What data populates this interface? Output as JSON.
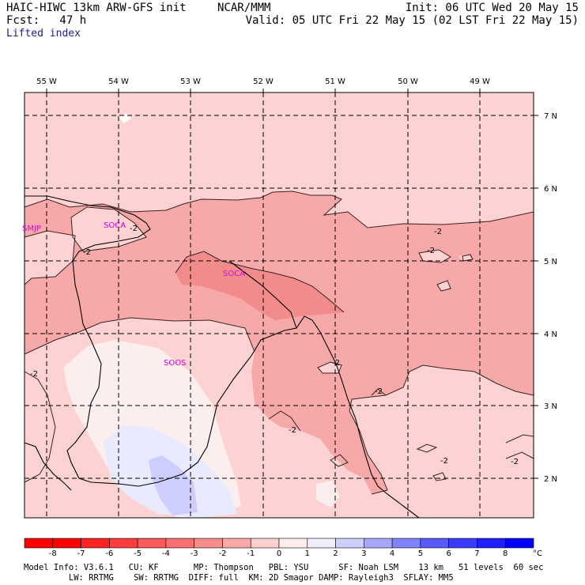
{
  "header": {
    "model": "HAIC-HIWC 13km ARW-GFS init",
    "center": "NCAR/MMM",
    "init": "Init: 06 UTC Wed 20 May 15",
    "fcst": "Fcst:   47 h",
    "valid": "Valid: 05 UTC Fri 22 May 15 (02 LST Fri 22 May 15)",
    "field": "Lifted index"
  },
  "map": {
    "lon_labels": [
      "55 W",
      "54 W",
      "53 W",
      "52 W",
      "51 W",
      "50 W",
      "49 W"
    ],
    "lat_labels": [
      "7 N",
      "6 N",
      "5 N",
      "4 N",
      "3 N",
      "2 N"
    ],
    "stations": [
      "SMJP",
      "SOCA",
      "SOCA",
      "SOOS"
    ],
    "contour_label": "-2"
  },
  "colorbar": {
    "ticks": [
      "-8",
      "-7",
      "-6",
      "-5",
      "-4",
      "-3",
      "-2",
      "-1",
      "0",
      "1",
      "2",
      "3",
      "4",
      "5",
      "6",
      "7",
      "8"
    ],
    "unit": "°C",
    "colors": [
      "#ff0000",
      "#ff2424",
      "#ff3c3c",
      "#ff5a5a",
      "#fa7070",
      "#f78c8c",
      "#fba9a9",
      "#ffcece",
      "#ffeeee",
      "#eeeeff",
      "#cfcfff",
      "#a7a7ff",
      "#8282fb",
      "#5a5afa",
      "#3c3cff",
      "#1e1eff",
      "#0000ff"
    ]
  },
  "footer": {
    "line1": "Model Info: V3.6.1   CU: KF       MP: Thompson   PBL: YSU      SF: Noah LSM    13 km   51 levels  60 sec",
    "line2": "         LW: RRTMG    SW: RRTMG  DIFF: full  KM: 2D Smagor DAMP: Rayleigh3  SFLAY: MM5"
  }
}
